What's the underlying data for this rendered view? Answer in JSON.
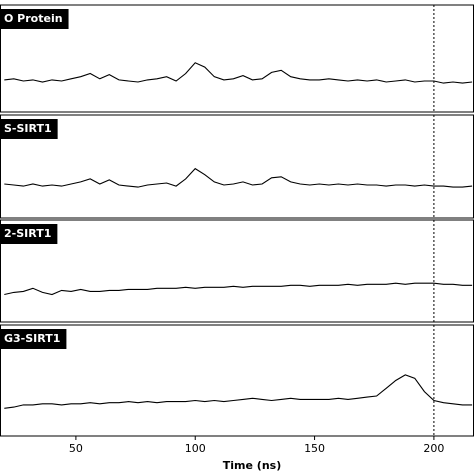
{
  "chart_data": [
    {
      "type": "line",
      "label": "O Protein",
      "color": "#000000",
      "xlim": [
        18.2,
        216.8
      ],
      "ylim": [
        0,
        1
      ],
      "vline": 200,
      "x": [
        20,
        24,
        28,
        32,
        36,
        40,
        44,
        48,
        52,
        56,
        60,
        64,
        68,
        72,
        76,
        80,
        84,
        88,
        92,
        96,
        100,
        104,
        108,
        112,
        116,
        120,
        124,
        128,
        132,
        136,
        140,
        144,
        148,
        152,
        156,
        160,
        164,
        168,
        172,
        176,
        180,
        184,
        188,
        192,
        196,
        200,
        204,
        208,
        212,
        216
      ],
      "values": [
        0.3,
        0.31,
        0.29,
        0.3,
        0.28,
        0.3,
        0.29,
        0.31,
        0.33,
        0.36,
        0.31,
        0.35,
        0.3,
        0.29,
        0.28,
        0.3,
        0.31,
        0.33,
        0.29,
        0.36,
        0.46,
        0.42,
        0.33,
        0.3,
        0.31,
        0.34,
        0.3,
        0.31,
        0.37,
        0.39,
        0.33,
        0.31,
        0.3,
        0.3,
        0.31,
        0.3,
        0.29,
        0.3,
        0.29,
        0.3,
        0.28,
        0.29,
        0.3,
        0.28,
        0.29,
        0.29,
        0.27,
        0.28,
        0.27,
        0.28
      ]
    },
    {
      "type": "line",
      "label": "S-SIRT1",
      "color": "#000000",
      "xlim": [
        18.2,
        216.8
      ],
      "ylim": [
        0,
        1
      ],
      "vline": 200,
      "x": [
        20,
        24,
        28,
        32,
        36,
        40,
        44,
        48,
        52,
        56,
        60,
        64,
        68,
        72,
        76,
        80,
        84,
        88,
        92,
        96,
        100,
        104,
        108,
        112,
        116,
        120,
        124,
        128,
        132,
        136,
        140,
        144,
        148,
        152,
        156,
        160,
        164,
        168,
        172,
        176,
        180,
        184,
        188,
        192,
        196,
        200,
        204,
        208,
        212,
        216
      ],
      "values": [
        0.33,
        0.32,
        0.31,
        0.33,
        0.31,
        0.32,
        0.31,
        0.33,
        0.35,
        0.38,
        0.33,
        0.37,
        0.32,
        0.31,
        0.3,
        0.32,
        0.33,
        0.34,
        0.31,
        0.38,
        0.48,
        0.42,
        0.35,
        0.32,
        0.33,
        0.35,
        0.32,
        0.33,
        0.39,
        0.4,
        0.35,
        0.33,
        0.32,
        0.33,
        0.32,
        0.33,
        0.32,
        0.33,
        0.32,
        0.32,
        0.31,
        0.32,
        0.32,
        0.31,
        0.32,
        0.31,
        0.31,
        0.3,
        0.3,
        0.31
      ]
    },
    {
      "type": "line",
      "label": "2-SIRT1",
      "color": "#000000",
      "xlim": [
        18.2,
        216.8
      ],
      "ylim": [
        0,
        1
      ],
      "vline": 200,
      "x": [
        20,
        24,
        28,
        32,
        36,
        40,
        44,
        48,
        52,
        56,
        60,
        64,
        68,
        72,
        76,
        80,
        84,
        88,
        92,
        96,
        100,
        104,
        108,
        112,
        116,
        120,
        124,
        128,
        132,
        136,
        140,
        144,
        148,
        152,
        156,
        160,
        164,
        168,
        172,
        176,
        180,
        184,
        188,
        192,
        196,
        200,
        204,
        208,
        212,
        216
      ],
      "values": [
        0.27,
        0.29,
        0.3,
        0.33,
        0.29,
        0.27,
        0.31,
        0.3,
        0.32,
        0.3,
        0.3,
        0.31,
        0.31,
        0.32,
        0.32,
        0.32,
        0.33,
        0.33,
        0.33,
        0.34,
        0.33,
        0.34,
        0.34,
        0.34,
        0.35,
        0.34,
        0.35,
        0.35,
        0.35,
        0.35,
        0.36,
        0.36,
        0.35,
        0.36,
        0.36,
        0.36,
        0.37,
        0.36,
        0.37,
        0.37,
        0.37,
        0.38,
        0.37,
        0.38,
        0.38,
        0.38,
        0.37,
        0.37,
        0.36,
        0.36
      ]
    },
    {
      "type": "line",
      "label": "G3-SIRT1",
      "color": "#000000",
      "xlim": [
        18.2,
        216.8
      ],
      "ylim": [
        0,
        1
      ],
      "vline": 200,
      "xlabel": "Time (ns)",
      "xticks": [
        50,
        100,
        150,
        200
      ],
      "x": [
        20,
        24,
        28,
        32,
        36,
        40,
        44,
        48,
        52,
        56,
        60,
        64,
        68,
        72,
        76,
        80,
        84,
        88,
        92,
        96,
        100,
        104,
        108,
        112,
        116,
        120,
        124,
        128,
        132,
        136,
        140,
        144,
        148,
        152,
        156,
        160,
        164,
        168,
        172,
        176,
        180,
        184,
        188,
        192,
        196,
        200,
        204,
        208,
        212,
        216
      ],
      "values": [
        0.25,
        0.26,
        0.28,
        0.28,
        0.29,
        0.29,
        0.28,
        0.29,
        0.29,
        0.3,
        0.29,
        0.3,
        0.3,
        0.31,
        0.3,
        0.31,
        0.3,
        0.31,
        0.31,
        0.31,
        0.32,
        0.31,
        0.32,
        0.31,
        0.32,
        0.33,
        0.34,
        0.33,
        0.32,
        0.33,
        0.34,
        0.33,
        0.33,
        0.33,
        0.33,
        0.34,
        0.33,
        0.34,
        0.35,
        0.36,
        0.43,
        0.5,
        0.55,
        0.52,
        0.4,
        0.32,
        0.3,
        0.29,
        0.28,
        0.28
      ]
    }
  ]
}
